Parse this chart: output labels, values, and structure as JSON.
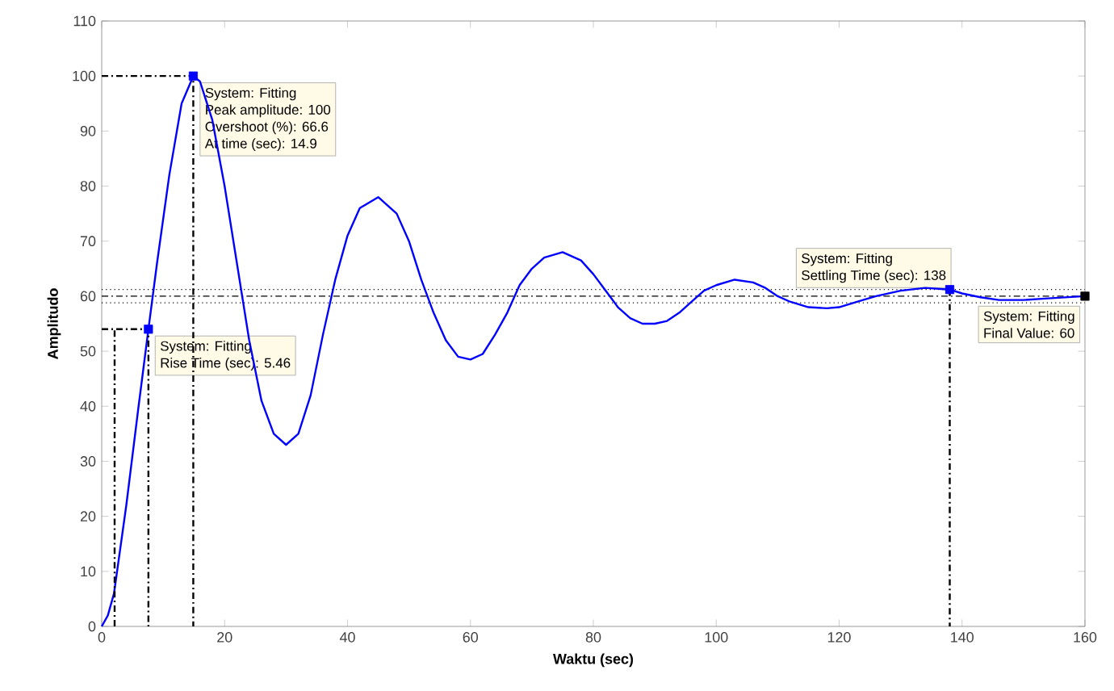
{
  "chart_data": {
    "type": "line",
    "xlabel": "Waktu (sec)",
    "ylabel": "Amplitudo",
    "xlim": [
      0,
      160
    ],
    "ylim": [
      0,
      110
    ],
    "xticks": [
      0,
      20,
      40,
      60,
      80,
      100,
      120,
      140,
      160
    ],
    "yticks": [
      0,
      10,
      20,
      30,
      40,
      50,
      60,
      70,
      80,
      90,
      100,
      110
    ],
    "series": [
      {
        "color": "#0000ff",
        "line_style": "solid",
        "x": [
          0,
          1,
          2,
          4,
          6,
          7.6,
          9,
          11,
          13,
          14.9,
          16,
          18,
          20,
          22,
          24,
          26,
          28,
          30,
          32,
          34,
          36,
          38,
          40,
          42,
          45,
          48,
          50,
          52,
          54,
          56,
          58,
          60,
          62,
          64,
          66,
          68,
          70,
          72,
          75,
          78,
          80,
          82,
          84,
          86,
          88,
          90,
          92,
          94,
          96,
          98,
          100,
          103,
          106,
          108,
          110,
          112,
          115,
          118,
          120,
          123,
          126,
          130,
          134,
          138,
          140,
          143,
          146,
          150,
          154,
          157,
          160
        ],
        "values": [
          0,
          2,
          6,
          22,
          40,
          54,
          66,
          82,
          95,
          100,
          99,
          92,
          80,
          66,
          52,
          41,
          35,
          33,
          35,
          42,
          53,
          63,
          71,
          76,
          78,
          75,
          70,
          63,
          57,
          52,
          49,
          48.5,
          49.5,
          53,
          57,
          62,
          65,
          67,
          68,
          66.5,
          64,
          61,
          58,
          56,
          55,
          55,
          55.5,
          57,
          59,
          61,
          62,
          63,
          62.5,
          61.5,
          60,
          59,
          58,
          57.8,
          58,
          59,
          60,
          61,
          61.5,
          61.2,
          60.5,
          59.8,
          59.3,
          59.3,
          59.6,
          59.8,
          60
        ]
      },
      {
        "type": "line",
        "color": "#000000",
        "line_style": "dashdot",
        "x": [
          2.1,
          2.1
        ],
        "values": [
          0,
          54
        ]
      },
      {
        "type": "line",
        "color": "#000000",
        "line_style": "dashdot",
        "x": [
          0,
          7.6,
          7.6
        ],
        "values": [
          54,
          54,
          0
        ]
      },
      {
        "type": "line",
        "color": "#000000",
        "line_style": "dashdot",
        "x": [
          0,
          14.9,
          14.9
        ],
        "values": [
          100,
          100,
          0
        ]
      },
      {
        "type": "line",
        "color": "#000000",
        "line_style": "dashdot",
        "x": [
          138,
          138
        ],
        "values": [
          61.2,
          0
        ]
      },
      {
        "type": "scatter",
        "color": "#0000ff",
        "marker": "square",
        "x": [
          7.6,
          14.9,
          138
        ],
        "values": [
          54,
          100,
          61.2
        ]
      },
      {
        "type": "scatter",
        "color": "#000000",
        "marker": "square",
        "x": [
          160
        ],
        "values": [
          60
        ]
      }
    ],
    "ref_lines": [
      {
        "axis": "y",
        "value": 60,
        "color": "#000000",
        "line_style": "dashdot"
      },
      {
        "axis": "y",
        "value": 58.8,
        "color": "#000000",
        "line_style": "dotted"
      },
      {
        "axis": "y",
        "value": 61.2,
        "color": "#000000",
        "line_style": "dotted"
      }
    ],
    "annotations": [
      {
        "text": "System: Fitting",
        "x": 7.6,
        "y": 54
      },
      "Rise Time (sec): 5.46",
      "System: Fitting",
      {
        "text": "Peak amplitude: 100",
        "x": 14.9,
        "y": 100
      },
      "Overshoot (%): 66.6",
      "At time (sec): 14.9",
      "System: Fitting",
      {
        "text": "Settling Time (sec): 138",
        "x": 138,
        "y": 61.2
      },
      {
        "text": "System: Fitting",
        "x": 160,
        "y": 60
      },
      "Final Value: 60"
    ]
  }
}
